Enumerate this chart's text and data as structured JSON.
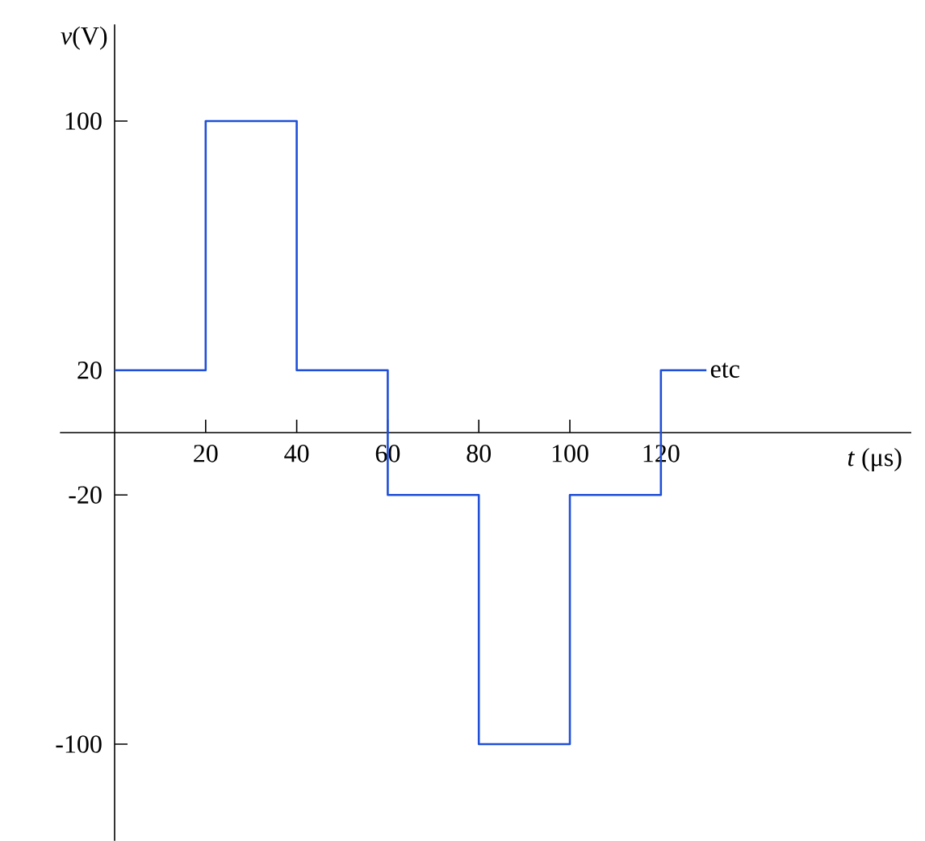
{
  "chart_data": {
    "type": "step",
    "xlabel": "*t* (μs)",
    "ylabel": "*v*(V)",
    "x": [
      0,
      20,
      40,
      60,
      80,
      100,
      120,
      130
    ],
    "values": [
      20,
      100,
      20,
      -20,
      -100,
      -20,
      20,
      20
    ],
    "color": "#1f4fd8",
    "xlim": [
      -12,
      175
    ],
    "ylim": [
      -131,
      131
    ],
    "xticks": [
      20,
      40,
      60,
      80,
      100,
      120
    ],
    "yticks": [
      -100,
      -20,
      20,
      100
    ],
    "annotations": [
      {
        "text": "etc",
        "x": 130,
        "y": 20
      }
    ]
  }
}
